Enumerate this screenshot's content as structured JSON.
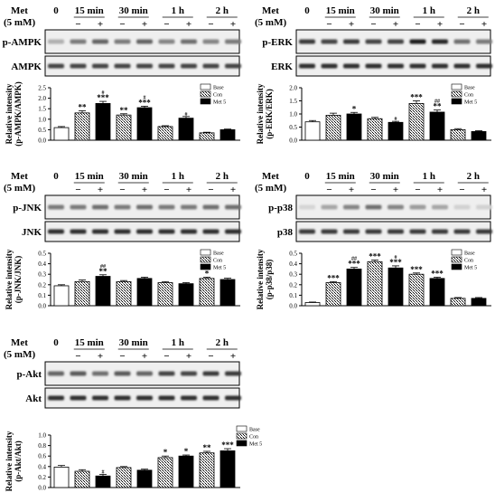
{
  "common": {
    "met_label": "Met",
    "dose_label": "(5 mM)",
    "time_labels": [
      "0",
      "15 min",
      "30 min",
      "1 h",
      "2 h"
    ],
    "minus": "−",
    "plus": "+",
    "legend": [
      "Base",
      "Con",
      "Met 5"
    ],
    "ylabel_line1": "Relative intensity"
  },
  "chart_data": [
    {
      "type": "bar",
      "panel": "AMPK",
      "blot_labels": [
        "p-AMPK",
        "AMPK"
      ],
      "ylabel_line2": "(p-AMPK/AMPK)",
      "categories": [
        "0",
        "15 min Con",
        "15 min Met",
        "30 min Con",
        "30 min Met",
        "1 h Con",
        "1 h Met",
        "2 h Con",
        "2 h Met"
      ],
      "values": [
        0.6,
        1.3,
        1.75,
        1.2,
        1.55,
        0.65,
        1.05,
        0.35,
        0.5
      ],
      "errors": [
        0.05,
        0.1,
        0.1,
        0.06,
        0.07,
        0.04,
        0.08,
        0.03,
        0.03
      ],
      "annotations": [
        "",
        "**",
        "#|***",
        "**",
        "#|***",
        "",
        "#",
        "",
        ""
      ],
      "ylim": [
        0,
        2.5
      ],
      "yticks": [
        "0.0",
        "0.5",
        "1.0",
        "1.5",
        "2.0",
        "2.5"
      ]
    },
    {
      "type": "bar",
      "panel": "ERK",
      "blot_labels": [
        "p-ERK",
        "ERK"
      ],
      "ylabel_line2": "(p-ERK/ERK)",
      "categories": [
        "0",
        "15 min Con",
        "15 min Met",
        "30 min Con",
        "30 min Met",
        "1 h Con",
        "1 h Met",
        "2 h Con",
        "2 h Met"
      ],
      "values": [
        0.7,
        0.95,
        1.0,
        0.82,
        0.68,
        1.4,
        1.07,
        0.4,
        0.33
      ],
      "errors": [
        0.05,
        0.08,
        0.06,
        0.05,
        0.04,
        0.1,
        0.08,
        0.04,
        0.03
      ],
      "annotations": [
        "",
        "",
        "*",
        "",
        "#",
        "***",
        "##|**",
        "",
        ""
      ],
      "ylim": [
        0,
        2.0
      ],
      "yticks": [
        "0.0",
        "0.5",
        "1.0",
        "1.5",
        "2.0"
      ]
    },
    {
      "type": "bar",
      "panel": "JNK",
      "blot_labels": [
        "p-JNK",
        "JNK"
      ],
      "ylabel_line2": "(p-JNK/JNK)",
      "categories": [
        "0",
        "15 min Con",
        "15 min Met",
        "30 min Con",
        "30 min Met",
        "1 h Con",
        "1 h Met",
        "2 h Con",
        "2 h Met"
      ],
      "values": [
        0.19,
        0.23,
        0.28,
        0.23,
        0.26,
        0.22,
        0.21,
        0.26,
        0.25
      ],
      "errors": [
        0.01,
        0.015,
        0.015,
        0.01,
        0.012,
        0.01,
        0.01,
        0.012,
        0.012
      ],
      "annotations": [
        "",
        "",
        "##|**",
        "",
        "",
        "",
        "",
        "*",
        ""
      ],
      "ylim": [
        0,
        0.5
      ],
      "yticks": [
        "0.0",
        "0.1",
        "0.2",
        "0.3",
        "0.4",
        "0.5"
      ]
    },
    {
      "type": "bar",
      "panel": "p38",
      "blot_labels": [
        "p-p38",
        "p38"
      ],
      "ylabel_line2": "(p-p38/p38)",
      "categories": [
        "0",
        "15 min Con",
        "15 min Met",
        "30 min Con",
        "30 min Met",
        "1 h Con",
        "1 h Met",
        "2 h Con",
        "2 h Met"
      ],
      "values": [
        0.03,
        0.22,
        0.35,
        0.42,
        0.36,
        0.3,
        0.26,
        0.07,
        0.07
      ],
      "errors": [
        0.005,
        0.01,
        0.015,
        0.015,
        0.02,
        0.012,
        0.012,
        0.008,
        0.008
      ],
      "annotations": [
        "",
        "***",
        "##|***",
        "***",
        "#|***",
        "***",
        "***",
        "",
        ""
      ],
      "ylim": [
        0,
        0.5
      ],
      "yticks": [
        "0.0",
        "0.1",
        "0.2",
        "0.3",
        "0.4",
        "0.5"
      ]
    },
    {
      "type": "bar",
      "panel": "Akt",
      "blot_labels": [
        "p-Akt",
        "Akt"
      ],
      "ylabel_line2": "(p-Akt/Akt)",
      "categories": [
        "0",
        "15 min Con",
        "15 min Met",
        "30 min Con",
        "30 min Met",
        "1 h Con",
        "1 h Met",
        "2 h Con",
        "2 h Met"
      ],
      "values": [
        0.39,
        0.31,
        0.22,
        0.38,
        0.33,
        0.57,
        0.6,
        0.66,
        0.7
      ],
      "errors": [
        0.03,
        0.03,
        0.03,
        0.02,
        0.02,
        0.03,
        0.02,
        0.03,
        0.04
      ],
      "annotations": [
        "",
        "",
        "#",
        "",
        "",
        "*",
        "*",
        "**",
        "***"
      ],
      "ylim": [
        0,
        1.0
      ],
      "yticks": [
        "0.0",
        "0.2",
        "0.4",
        "0.6",
        "0.8",
        "1.0"
      ]
    }
  ]
}
